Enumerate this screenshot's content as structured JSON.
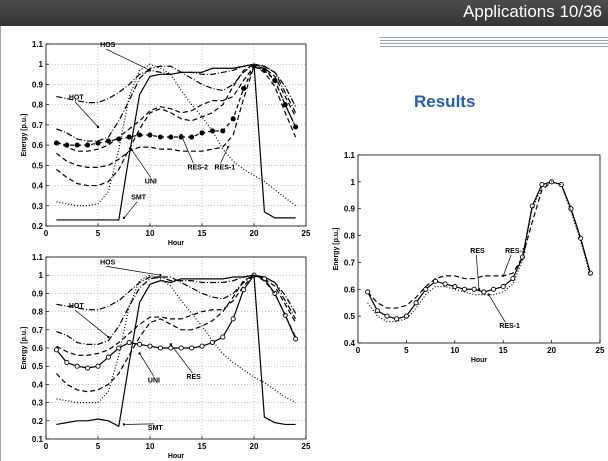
{
  "slide": {
    "title": "Applications 10/36",
    "results_title": "Results"
  },
  "chart_data": [
    {
      "type": "line",
      "xlabel": "Hour",
      "ylabel": "Energy [p.u.]",
      "xlim": [
        0,
        25
      ],
      "ylim": [
        0.2,
        1.1
      ],
      "xticks": [
        0,
        5,
        10,
        15,
        20,
        25
      ],
      "yticks": [
        0.2,
        0.3,
        0.4,
        0.5,
        0.6,
        0.7,
        0.8,
        0.9,
        1,
        1.1
      ],
      "ytick_labels": [
        "0.2",
        "0.3",
        "0.4",
        "0.5",
        "0.6",
        "0.7",
        "0.8",
        "0.9",
        "1",
        "1.1"
      ],
      "grid": true,
      "x": [
        1,
        2,
        3,
        4,
        5,
        6,
        7,
        8,
        9,
        10,
        11,
        12,
        13,
        14,
        15,
        16,
        17,
        18,
        19,
        20,
        21,
        22,
        23,
        24
      ],
      "series": [
        {
          "name": "HOS",
          "style": "dashdot",
          "color": "#000000",
          "values": [
            0.84,
            0.83,
            0.82,
            0.81,
            0.81,
            0.83,
            0.86,
            0.9,
            0.95,
            0.97,
            0.96,
            0.95,
            0.96,
            0.96,
            0.95,
            0.95,
            0.96,
            0.97,
            0.99,
            1.0,
            0.99,
            0.96,
            0.89,
            0.79
          ]
        },
        {
          "name": "HOT",
          "style": "dashdot",
          "color": "#000000",
          "values": [
            0.68,
            0.66,
            0.63,
            0.62,
            0.62,
            0.64,
            0.72,
            0.82,
            0.93,
            0.98,
            0.99,
            0.99,
            0.96,
            0.93,
            0.9,
            0.88,
            0.87,
            0.9,
            0.96,
            1.0,
            0.99,
            0.96,
            0.86,
            0.76
          ]
        },
        {
          "name": "RES-2",
          "style": "dash",
          "color": "#000000",
          "values": [
            0.62,
            0.59,
            0.57,
            0.57,
            0.58,
            0.6,
            0.64,
            0.68,
            0.72,
            0.77,
            0.79,
            0.78,
            0.76,
            0.77,
            0.8,
            0.82,
            0.82,
            0.84,
            0.92,
            0.99,
            0.98,
            0.94,
            0.84,
            0.74
          ]
        },
        {
          "name": "RES-1",
          "style": "dashedmarker",
          "color": "#000000",
          "values": [
            0.61,
            0.6,
            0.6,
            0.6,
            0.61,
            0.62,
            0.63,
            0.64,
            0.65,
            0.65,
            0.64,
            0.64,
            0.64,
            0.64,
            0.66,
            0.67,
            0.67,
            0.73,
            0.88,
            0.99,
            0.97,
            0.92,
            0.8,
            0.69
          ]
        },
        {
          "name": "UNI",
          "style": "dash",
          "color": "#000000",
          "values": [
            0.56,
            0.52,
            0.5,
            0.49,
            0.49,
            0.5,
            0.53,
            0.57,
            0.59,
            0.59,
            0.58,
            0.58,
            0.57,
            0.57,
            0.57,
            0.58,
            0.59,
            0.65,
            0.83,
            0.99,
            0.96,
            0.89,
            0.76,
            0.64
          ]
        },
        {
          "name": "",
          "style": "dash",
          "color": "#000000",
          "values": [
            0.48,
            0.44,
            0.41,
            0.4,
            0.4,
            0.42,
            0.48,
            0.58,
            0.68,
            0.76,
            0.78,
            0.76,
            0.73,
            0.72,
            0.74,
            0.76,
            0.8,
            0.89,
            0.97,
            1.0,
            0.98,
            0.92,
            0.8,
            0.69
          ]
        },
        {
          "name": "",
          "style": "dot",
          "color": "#000000",
          "values": [
            0.32,
            0.31,
            0.3,
            0.3,
            0.31,
            0.37,
            0.58,
            0.84,
            0.97,
            1.0,
            0.98,
            0.95,
            0.87,
            0.8,
            0.74,
            0.67,
            0.58,
            0.52,
            0.48,
            0.45,
            0.42,
            0.38,
            0.34,
            0.3
          ]
        },
        {
          "name": "SMT",
          "style": "solid",
          "color": "#000000",
          "values": [
            0.23,
            0.23,
            0.23,
            0.23,
            0.23,
            0.23,
            0.23,
            0.55,
            0.85,
            0.94,
            0.95,
            0.95,
            0.96,
            0.96,
            0.96,
            0.98,
            0.98,
            0.98,
            0.99,
            1.0,
            0.27,
            0.24,
            0.24,
            0.24
          ]
        }
      ],
      "annotations": [
        "HOS",
        "HOT",
        "RES-2",
        "RES-1",
        "UNI",
        "SMT"
      ]
    },
    {
      "type": "line",
      "xlabel": "Hour",
      "ylabel": "Energy [p.u.]",
      "xlim": [
        0,
        25
      ],
      "ylim": [
        0.1,
        1.1
      ],
      "xticks": [
        0,
        5,
        10,
        15,
        20,
        25
      ],
      "yticks": [
        0.1,
        0.2,
        0.3,
        0.4,
        0.5,
        0.6,
        0.7,
        0.8,
        0.9,
        1,
        1.1
      ],
      "ytick_labels": [
        "0.1",
        "0.2",
        "0.3",
        "0.4",
        "0.5",
        "0.6",
        "0.7",
        "0.8",
        "0.9",
        "1",
        "1.1"
      ],
      "grid": true,
      "x": [
        1,
        2,
        3,
        4,
        5,
        6,
        7,
        8,
        9,
        10,
        11,
        12,
        13,
        14,
        15,
        16,
        17,
        18,
        19,
        20,
        21,
        22,
        23,
        24
      ],
      "series": [
        {
          "name": "HOS",
          "style": "dashdot",
          "color": "#000000",
          "values": [
            0.84,
            0.83,
            0.82,
            0.81,
            0.81,
            0.83,
            0.86,
            0.91,
            0.96,
            0.99,
            0.99,
            0.97,
            0.97,
            0.97,
            0.96,
            0.96,
            0.96,
            0.97,
            0.99,
            1.0,
            0.99,
            0.96,
            0.89,
            0.79
          ]
        },
        {
          "name": "HOT",
          "style": "dashdot",
          "color": "#000000",
          "values": [
            0.69,
            0.67,
            0.63,
            0.62,
            0.62,
            0.64,
            0.72,
            0.83,
            0.93,
            0.98,
            0.99,
            0.99,
            0.96,
            0.93,
            0.9,
            0.88,
            0.87,
            0.9,
            0.96,
            1.0,
            0.99,
            0.96,
            0.86,
            0.76
          ]
        },
        {
          "name": "",
          "style": "dash",
          "color": "#000000",
          "values": [
            0.61,
            0.58,
            0.56,
            0.56,
            0.57,
            0.59,
            0.63,
            0.68,
            0.73,
            0.77,
            0.77,
            0.76,
            0.76,
            0.78,
            0.8,
            0.81,
            0.81,
            0.86,
            0.94,
            1.0,
            0.98,
            0.94,
            0.84,
            0.74
          ]
        },
        {
          "name": "RES",
          "style": "solidmarker",
          "color": "#000000",
          "values": [
            0.59,
            0.52,
            0.5,
            0.49,
            0.5,
            0.55,
            0.6,
            0.63,
            0.62,
            0.61,
            0.6,
            0.6,
            0.6,
            0.6,
            0.61,
            0.63,
            0.66,
            0.76,
            0.92,
            1.0,
            0.98,
            0.9,
            0.78,
            0.65
          ]
        },
        {
          "name": "",
          "style": "dash",
          "color": "#000000",
          "values": [
            0.46,
            0.4,
            0.37,
            0.36,
            0.37,
            0.4,
            0.46,
            0.56,
            0.66,
            0.74,
            0.76,
            0.73,
            0.7,
            0.7,
            0.72,
            0.75,
            0.8,
            0.88,
            0.97,
            1.0,
            0.97,
            0.9,
            0.78,
            0.66
          ]
        },
        {
          "name": "UNI",
          "style": "dot",
          "color": "#000000",
          "values": [
            0.32,
            0.31,
            0.3,
            0.3,
            0.3,
            0.36,
            0.56,
            0.83,
            0.97,
            1.0,
            0.98,
            0.94,
            0.86,
            0.79,
            0.72,
            0.64,
            0.57,
            0.52,
            0.48,
            0.44,
            0.41,
            0.37,
            0.33,
            0.3
          ]
        },
        {
          "name": "SMT",
          "style": "solid",
          "color": "#000000",
          "values": [
            0.18,
            0.19,
            0.2,
            0.2,
            0.21,
            0.2,
            0.17,
            0.52,
            0.85,
            0.95,
            0.97,
            0.96,
            0.98,
            0.98,
            0.98,
            0.98,
            0.98,
            0.99,
            0.99,
            1.0,
            0.22,
            0.19,
            0.18,
            0.18
          ]
        }
      ],
      "annotations": [
        "HOS",
        "HOT",
        "RES",
        "UNI",
        "SMT"
      ]
    },
    {
      "type": "line",
      "xlabel": "Hour",
      "ylabel": "Energy [p.u.]",
      "xlim": [
        0,
        25
      ],
      "ylim": [
        0.4,
        1.1
      ],
      "xticks": [
        0,
        5,
        10,
        15,
        20,
        25
      ],
      "yticks": [
        0.4,
        0.5,
        0.6,
        0.7,
        0.8,
        0.9,
        1,
        1.1
      ],
      "ytick_labels": [
        "0.4",
        "0.5",
        "0.6",
        "0.7",
        "0.8",
        "0.9",
        "1",
        "1.1"
      ],
      "grid": false,
      "x": [
        1,
        2,
        3,
        4,
        5,
        6,
        7,
        8,
        9,
        10,
        11,
        12,
        13,
        14,
        15,
        16,
        17,
        18,
        19,
        20,
        21,
        22,
        23,
        24
      ],
      "series": [
        {
          "name": "RES-2",
          "style": "dash",
          "color": "#000000",
          "values": [
            0.59,
            0.55,
            0.53,
            0.53,
            0.54,
            0.57,
            0.61,
            0.64,
            0.65,
            0.65,
            0.64,
            0.64,
            0.65,
            0.65,
            0.65,
            0.66,
            0.72,
            0.85,
            0.97,
            1.0,
            0.99,
            0.9,
            0.79,
            0.66
          ]
        },
        {
          "name": "RES",
          "style": "solidmarker",
          "color": "#000000",
          "values": [
            0.59,
            0.52,
            0.5,
            0.49,
            0.5,
            0.55,
            0.6,
            0.63,
            0.62,
            0.61,
            0.6,
            0.6,
            0.59,
            0.6,
            0.61,
            0.64,
            0.72,
            0.91,
            0.99,
            1.0,
            0.99,
            0.9,
            0.79,
            0.66
          ]
        },
        {
          "name": "RES-1",
          "style": "dot",
          "color": "#000000",
          "values": [
            0.55,
            0.5,
            0.48,
            0.48,
            0.49,
            0.53,
            0.58,
            0.61,
            0.61,
            0.6,
            0.59,
            0.58,
            0.58,
            0.58,
            0.59,
            0.62,
            0.71,
            0.9,
            0.98,
            1.0,
            0.99,
            0.89,
            0.78,
            0.65
          ]
        }
      ],
      "annotations": [
        "RES",
        "RES-2",
        "RES-1"
      ]
    }
  ],
  "chart_labels": {
    "top": {
      "annotations": [
        {
          "text": "HOS",
          "series": "HOS",
          "xy": [
            10,
            0.97
          ],
          "text_xy": [
            5.2,
            1.085
          ]
        },
        {
          "text": "HOT",
          "series": "HOT",
          "xy": [
            5,
            0.69
          ],
          "text_xy": [
            2.2,
            0.825
          ]
        },
        {
          "text": "RES-2",
          "series": "RES-2",
          "xy": [
            13,
            0.65
          ],
          "text_xy": [
            13.6,
            0.48
          ]
        },
        {
          "text": "RES-1",
          "series": "RES-1",
          "xy": [
            17.5,
            0.59
          ],
          "text_xy": [
            16.2,
            0.48
          ]
        },
        {
          "text": "UNI",
          "series": "UNI",
          "xy": [
            8.2,
            0.58
          ],
          "text_xy": [
            9.5,
            0.41
          ]
        },
        {
          "text": "SMT",
          "series": "SMT",
          "xy": [
            7.5,
            0.24
          ],
          "text_xy": [
            8.2,
            0.33
          ]
        }
      ]
    },
    "bottom": {
      "annotations": [
        {
          "text": "HOS",
          "series": "HOS",
          "xy": [
            11,
            1.0
          ],
          "text_xy": [
            5.2,
            1.06
          ]
        },
        {
          "text": "HOT",
          "series": "HOT",
          "xy": [
            6,
            0.66
          ],
          "text_xy": [
            2.2,
            0.82
          ]
        },
        {
          "text": "RES",
          "series": "RES",
          "xy": [
            12,
            0.62
          ],
          "text_xy": [
            13.5,
            0.43
          ]
        },
        {
          "text": "UNI",
          "series": "UNI",
          "xy": [
            9,
            0.57
          ],
          "text_xy": [
            9.8,
            0.41
          ]
        },
        {
          "text": "SMT",
          "series": "SMT",
          "xy": [
            7.5,
            0.18
          ],
          "text_xy": [
            9.8,
            0.15
          ]
        }
      ]
    },
    "right": {
      "annotations": [
        {
          "text": "RES",
          "series": "RES",
          "xy": [
            12.5,
            0.6
          ],
          "text_xy": [
            11.6,
            0.735
          ]
        },
        {
          "text": "RES-2",
          "series": "RES-2",
          "xy": [
            15,
            0.65
          ],
          "text_xy": [
            15.2,
            0.735
          ]
        },
        {
          "text": "RES-1",
          "series": "RES-1",
          "xy": [
            13.5,
            0.58
          ],
          "text_xy": [
            14.6,
            0.455
          ]
        }
      ]
    }
  }
}
